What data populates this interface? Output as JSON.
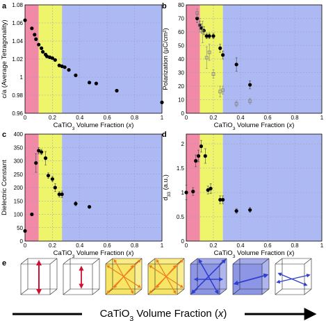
{
  "colors": {
    "pink": "#f08aa6",
    "yellow": "#eef56a",
    "blue": "#adb9f2",
    "marker": "#000000",
    "open_marker": "#808080",
    "cube_red": "#cc1133",
    "cube_yellow": "#f6e24b",
    "cube_orange": "#f07a1a",
    "cube_blue": "#2f3fd0"
  },
  "region_bounds": {
    "pink_end": 0.1,
    "yellow_end": 0.27
  },
  "chart_data": [
    {
      "panel": "a",
      "type": "scatter",
      "xlabel_prefix": "CaTiO",
      "xlabel_sub": "3",
      "xlabel_suffix": " Volume Fraction (",
      "xlabel_var": "x",
      "xlabel_close": ")",
      "ylabel": "c/a (Average Tetragonality)",
      "xlim": [
        0,
        1
      ],
      "ylim": [
        0.96,
        1.08
      ],
      "xticks": [
        "0",
        "0.2",
        "0.4",
        "0.6",
        "0.8",
        "1"
      ],
      "yticks": [
        "0.96",
        "0.98",
        "1",
        "1.02",
        "1.04",
        "1.06",
        "1.08"
      ],
      "series": [
        {
          "style": "filled",
          "x": [
            0.0,
            0.05,
            0.07,
            0.08,
            0.1,
            0.12,
            0.13,
            0.15,
            0.16,
            0.18,
            0.2,
            0.22,
            0.25,
            0.27,
            0.29,
            0.32,
            0.37,
            0.47,
            0.52,
            0.67,
            1.0
          ],
          "y": [
            1.063,
            1.054,
            1.047,
            1.042,
            1.036,
            1.032,
            1.028,
            1.025,
            1.023,
            1.022,
            1.021,
            1.019,
            1.013,
            1.012,
            1.011,
            1.008,
            1.002,
            0.994,
            0.993,
            0.985,
            0.972
          ]
        }
      ]
    },
    {
      "panel": "b",
      "type": "scatter",
      "xlabel_prefix": "CaTiO",
      "xlabel_sub": "3",
      "xlabel_suffix": " Volume Fraction (",
      "xlabel_var": "x",
      "xlabel_close": ")",
      "ylabel": "Polarization (µC/cm²)",
      "xlim": [
        0,
        1
      ],
      "ylim": [
        0,
        80
      ],
      "xticks": [
        "0",
        "0.2",
        "0.4",
        "0.6",
        "0.8",
        "1"
      ],
      "yticks": [
        "0",
        "10",
        "20",
        "30",
        "40",
        "50",
        "60",
        "70",
        "80"
      ],
      "series": [
        {
          "style": "filled",
          "x": [
            0.08,
            0.1,
            0.11,
            0.13,
            0.15,
            0.17,
            0.2,
            0.25,
            0.27,
            0.37,
            0.47
          ],
          "y": [
            70,
            65,
            63,
            61,
            57,
            57,
            57,
            48,
            43,
            36,
            21
          ],
          "err": [
            3,
            3,
            3,
            3,
            2,
            2,
            2,
            3,
            3,
            5,
            3
          ]
        },
        {
          "style": "open",
          "x": [
            0.08,
            0.1,
            0.12,
            0.15,
            0.17,
            0.2,
            0.25,
            0.27,
            0.37,
            0.47
          ],
          "y": [
            74,
            65,
            60,
            41,
            45,
            29,
            16,
            17,
            7,
            9
          ],
          "err": [
            3,
            5,
            8,
            8,
            6,
            3,
            4,
            3,
            2,
            2
          ]
        }
      ]
    },
    {
      "panel": "c",
      "type": "scatter",
      "xlabel_prefix": "CaTiO",
      "xlabel_sub": "3",
      "xlabel_suffix": " Volume Fraction (",
      "xlabel_var": "x",
      "xlabel_close": ")",
      "ylabel": "Dielectric Constant",
      "xlim": [
        0,
        1
      ],
      "ylim": [
        0,
        400
      ],
      "xticks": [
        "0",
        "0.2",
        "0.4",
        "0.6",
        "0.8",
        "1"
      ],
      "yticks": [
        "0",
        "50",
        "100",
        "150",
        "200",
        "250",
        "300",
        "350",
        "400"
      ],
      "series": [
        {
          "style": "filled",
          "x": [
            0.0,
            0.05,
            0.08,
            0.1,
            0.12,
            0.15,
            0.17,
            0.2,
            0.22,
            0.25,
            0.27,
            0.37,
            0.47
          ],
          "y": [
            38,
            100,
            292,
            338,
            333,
            310,
            245,
            232,
            200,
            175,
            175,
            140,
            128
          ],
          "err": [
            0,
            0,
            35,
            12,
            10,
            25,
            10,
            10,
            15,
            10,
            12,
            8,
            5
          ]
        }
      ]
    },
    {
      "panel": "d",
      "type": "scatter",
      "xlabel_prefix": "CaTiO",
      "xlabel_sub": "3",
      "xlabel_suffix": " Volume Fraction (",
      "xlabel_var": "x",
      "xlabel_close": ")",
      "ylabel_prefix": "d",
      "ylabel_sub": "33",
      "ylabel_suffix": " (a.u.)",
      "xlim": [
        0,
        1
      ],
      "ylim": [
        0,
        2.2
      ],
      "xticks": [
        "0",
        "0.2",
        "0.4",
        "0.6",
        "0.8",
        "1"
      ],
      "yticks": [
        "0",
        "0.5",
        "1",
        "1.5",
        "2"
      ],
      "series": [
        {
          "style": "filled",
          "x": [
            0.0,
            0.05,
            0.07,
            0.09,
            0.11,
            0.14,
            0.16,
            0.18,
            0.25,
            0.27,
            0.37,
            0.47
          ],
          "y": [
            1.0,
            1.02,
            1.65,
            1.75,
            1.95,
            1.75,
            1.05,
            1.08,
            0.85,
            0.85,
            0.62,
            0.64
          ],
          "err": [
            0.15,
            0.08,
            0.12,
            0.12,
            0.12,
            0.15,
            0.08,
            0.1,
            0.08,
            0.08,
            0.05,
            0.05
          ]
        }
      ]
    }
  ],
  "panel_e": {
    "letter": "e",
    "xlabel_prefix": "CaTiO",
    "xlabel_sub": "3",
    "xlabel_suffix": " Volume Fraction (",
    "xlabel_var": "x",
    "xlabel_close": ")",
    "cubes": [
      {
        "fill": "none",
        "arrows": "tetragonal"
      },
      {
        "fill": "none",
        "arrows": "tetragonal-small"
      },
      {
        "fill": "yellow",
        "arrows": "rhombohedral"
      },
      {
        "fill": "yellow",
        "arrows": "rhombohedral"
      },
      {
        "fill": "blue",
        "arrows": "orthorhombic"
      },
      {
        "fill": "blue",
        "arrows": "orthorhombic-single"
      },
      {
        "fill": "none",
        "arrows": "orthorhombic-thin"
      }
    ]
  }
}
